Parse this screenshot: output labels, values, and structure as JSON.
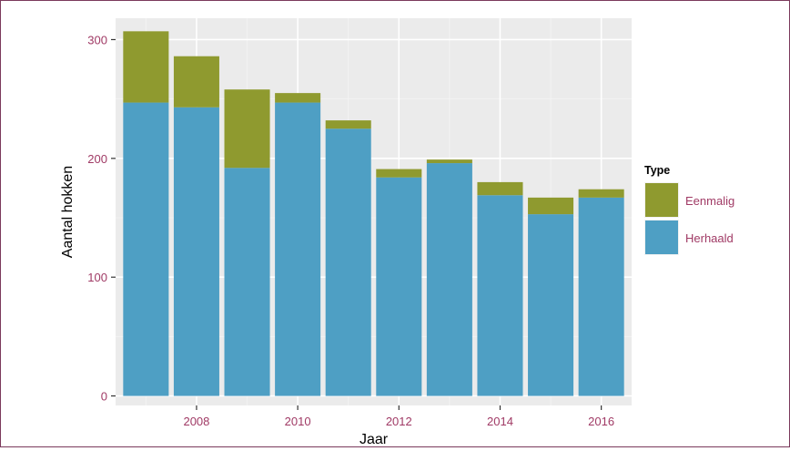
{
  "chart_data": {
    "type": "bar",
    "stacked": true,
    "xlabel": "Jaar",
    "ylabel": "Aantal hokken",
    "x": [
      2007,
      2008,
      2009,
      2010,
      2011,
      2012,
      2013,
      2014,
      2015,
      2016
    ],
    "x_ticks": [
      2008,
      2010,
      2012,
      2014,
      2016
    ],
    "y_ticks": [
      0,
      100,
      200,
      300
    ],
    "xlim": [
      2006.4,
      2016.6
    ],
    "ylim": [
      -8,
      318
    ],
    "grid": true,
    "legend": {
      "title": "Type",
      "position": "right"
    },
    "series": [
      {
        "name": "Herhaald",
        "color": "#4e9fc4",
        "values": [
          247,
          243,
          192,
          247,
          225,
          184,
          196,
          169,
          153,
          167
        ]
      },
      {
        "name": "Eenmalig",
        "color": "#8f9a2f",
        "values": [
          60,
          43,
          66,
          8,
          7,
          7,
          3,
          11,
          14,
          7
        ]
      }
    ],
    "colors": {
      "panel_bg": "#ebebeb",
      "grid_major": "#ffffff",
      "grid_minor": "#f5f5f5",
      "tick_label": "#a03a65",
      "axis_label": "#000000",
      "frame_border": "#7b3a5c"
    }
  }
}
